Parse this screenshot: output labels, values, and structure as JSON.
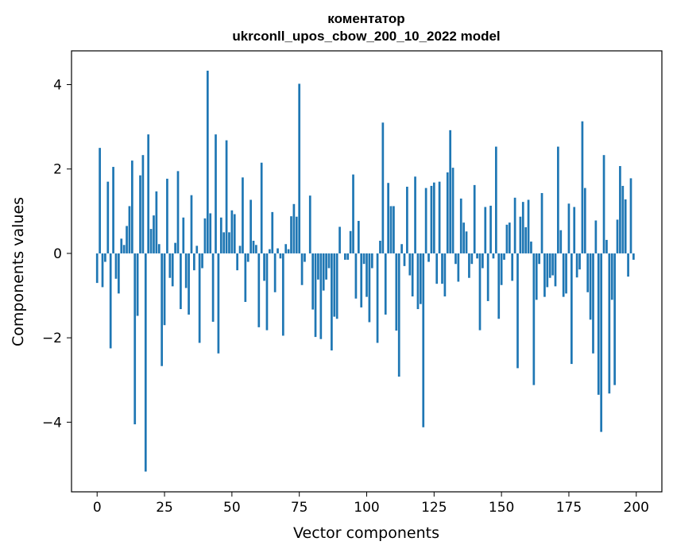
{
  "chart_data": {
    "type": "bar",
    "title_line1": "коментатор",
    "title_line2": "ukrconll_upos_cbow_200_10_2022 model",
    "xlabel": "Vector components",
    "ylabel": "Components values",
    "xlim": [
      -9.5,
      209.5
    ],
    "ylim": [
      -5.65,
      4.8
    ],
    "x_ticks": [
      0,
      25,
      50,
      75,
      100,
      125,
      150,
      175,
      200
    ],
    "y_ticks": [
      -4,
      -2,
      0,
      2,
      4
    ],
    "y_tick_labels": [
      "−4",
      "−2",
      "0",
      "2",
      "4"
    ],
    "bar_color": "#1f77b4",
    "grid": false,
    "values": [
      -0.7,
      2.5,
      -0.8,
      -0.2,
      1.7,
      -2.25,
      2.05,
      -0.6,
      -0.95,
      0.35,
      0.2,
      0.65,
      1.12,
      2.2,
      -4.05,
      -1.48,
      1.85,
      2.33,
      -5.17,
      2.82,
      0.58,
      0.9,
      1.47,
      0.22,
      -2.67,
      -1.7,
      1.77,
      -0.58,
      -0.78,
      0.25,
      1.95,
      -1.32,
      0.85,
      -0.82,
      -1.45,
      1.38,
      -0.4,
      0.18,
      -2.12,
      -0.35,
      0.83,
      4.33,
      0.95,
      -1.62,
      2.82,
      -2.37,
      0.85,
      0.5,
      2.68,
      0.5,
      1.02,
      0.93,
      -0.4,
      0.18,
      1.8,
      -1.15,
      -0.2,
      1.27,
      0.3,
      0.2,
      -1.75,
      2.15,
      -0.65,
      -1.82,
      0.1,
      0.98,
      -0.92,
      0.12,
      -0.12,
      -1.95,
      0.22,
      0.1,
      0.88,
      1.17,
      0.87,
      4.02,
      -0.75,
      -0.2,
      0.0,
      1.37,
      -1.33,
      -1.98,
      -0.62,
      -2.03,
      -0.88,
      -0.62,
      -0.35,
      -2.3,
      -1.5,
      -1.55,
      0.63,
      0.0,
      -0.15,
      -0.15,
      0.53,
      1.87,
      -1.07,
      0.77,
      -1.28,
      -0.25,
      -1.03,
      -1.63,
      -0.35,
      0.0,
      -2.12,
      0.3,
      3.1,
      -1.45,
      1.67,
      1.12,
      1.12,
      -1.83,
      -2.92,
      0.22,
      -0.3,
      1.58,
      -0.52,
      -1.02,
      1.82,
      -1.32,
      -1.2,
      -4.12,
      1.55,
      -0.2,
      1.6,
      1.68,
      -0.72,
      1.7,
      -0.72,
      -1.02,
      1.92,
      2.92,
      2.03,
      -0.25,
      -0.67,
      1.3,
      0.73,
      0.52,
      -0.58,
      -0.25,
      1.62,
      -0.12,
      -1.82,
      -0.35,
      1.1,
      -1.13,
      1.13,
      -0.12,
      2.53,
      -1.55,
      -0.75,
      -0.15,
      0.68,
      0.73,
      -0.65,
      1.32,
      -2.72,
      0.87,
      1.22,
      0.62,
      1.27,
      0.28,
      -3.12,
      -1.1,
      -0.25,
      1.43,
      -1.03,
      -0.8,
      -0.58,
      -0.52,
      -0.78,
      2.53,
      0.55,
      -1.03,
      -0.95,
      1.18,
      -2.62,
      1.1,
      -0.57,
      -0.38,
      3.13,
      1.55,
      -0.92,
      -1.57,
      -2.37,
      0.78,
      -3.35,
      -4.23,
      2.33,
      0.32,
      -3.32,
      -1.1,
      -3.12,
      0.8,
      2.07,
      1.6,
      1.28,
      -0.55,
      1.78,
      -0.15
    ]
  }
}
